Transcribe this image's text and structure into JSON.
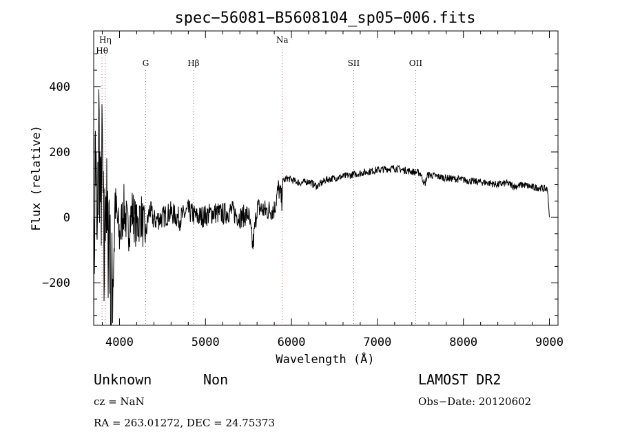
{
  "chart_data": {
    "type": "line",
    "title": "spec−56081−B5608104_sp05−006.fits",
    "xlabel": "Wavelength (Å)",
    "ylabel": "Flux (relative)",
    "xlim": [
      3700,
      9100
    ],
    "ylim": [
      -330,
      570
    ],
    "x_ticks": [
      4000,
      5000,
      6000,
      7000,
      8000,
      9000
    ],
    "y_ticks": [
      -200,
      0,
      200,
      400
    ],
    "y_tick_labels": [
      "−200",
      "0",
      "200",
      "400"
    ],
    "grid": false,
    "series": [
      {
        "x": [
          3700,
          3720,
          3740,
          3760,
          3780,
          3800,
          3820,
          3840,
          3860,
          3880,
          3900,
          3950,
          4000,
          4050,
          4100,
          4150,
          4200,
          4250,
          4300,
          4350,
          4400,
          4500,
          4600,
          4700,
          4800,
          4850,
          4900,
          5000,
          5100,
          5200,
          5300,
          5400,
          5500,
          5550,
          5600,
          5700,
          5800,
          5850,
          5890,
          5900,
          5950,
          6000,
          6100,
          6200,
          6300,
          6400,
          6500,
          6600,
          6700,
          6800,
          6900,
          7000,
          7100,
          7200,
          7300,
          7400,
          7500,
          7550,
          7580,
          7600,
          7700,
          7800,
          7900,
          8000,
          8100,
          8200,
          8300,
          8400,
          8500,
          8600,
          8700,
          8800,
          8900,
          8980,
          9000
        ],
        "y": [
          -300,
          250,
          -150,
          300,
          0,
          200,
          -200,
          150,
          -120,
          50,
          -320,
          40,
          -60,
          30,
          -40,
          20,
          -30,
          10,
          -60,
          25,
          -10,
          0,
          15,
          -5,
          20,
          10,
          0,
          5,
          15,
          10,
          20,
          0,
          10,
          -90,
          30,
          20,
          25,
          90,
          50,
          110,
          120,
          115,
          105,
          110,
          95,
          115,
          120,
          125,
          130,
          135,
          140,
          145,
          148,
          150,
          145,
          140,
          135,
          100,
          128,
          130,
          125,
          120,
          118,
          115,
          110,
          108,
          105,
          100,
          105,
          95,
          100,
          92,
          90,
          85,
          0
        ]
      }
    ],
    "spectral_lines": [
      {
        "label": "Hη",
        "x": 3835
      },
      {
        "label": "Hθ",
        "x": 3797
      },
      {
        "label": "G",
        "x": 4305
      },
      {
        "label": "Hβ",
        "x": 4861
      },
      {
        "label": "Na",
        "x": 5893
      },
      {
        "label": "SII",
        "x": 6724
      },
      {
        "label": "OII",
        "x": 7445
      }
    ]
  },
  "info": {
    "class": "Unknown",
    "subclass": "Non",
    "cz": "cz = NaN",
    "coords": "RA = 263.01272, DEC =  24.75373",
    "survey": "LAMOST DR2",
    "obs_date": "Obs−Date: 20120602"
  }
}
